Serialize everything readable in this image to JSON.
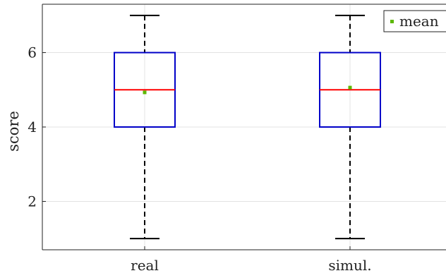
{
  "chart_data": {
    "type": "boxplot",
    "title": "",
    "xlabel": "",
    "ylabel": "score",
    "ylim": [
      0.7,
      7.3
    ],
    "yticks": [
      2,
      4,
      6
    ],
    "grid": true,
    "categories": [
      "real",
      "simul."
    ],
    "boxes": [
      {
        "category": "real",
        "whisker_low": 1,
        "q1": 4,
        "median": 5,
        "q3": 6,
        "whisker_high": 7,
        "mean": 4.93
      },
      {
        "category": "simul.",
        "whisker_low": 1,
        "q1": 4,
        "median": 5,
        "q3": 6,
        "whisker_high": 7,
        "mean": 5.06
      }
    ],
    "legend": {
      "position": "top-right",
      "entries": [
        {
          "label": "mean",
          "color": "#5cb800"
        }
      ]
    },
    "colors": {
      "box": "#0000c8",
      "median": "#ff0000",
      "whisker": "#000000",
      "mean": "#5cb800",
      "grid": "#e3e3e3",
      "axis": "#222222"
    }
  }
}
